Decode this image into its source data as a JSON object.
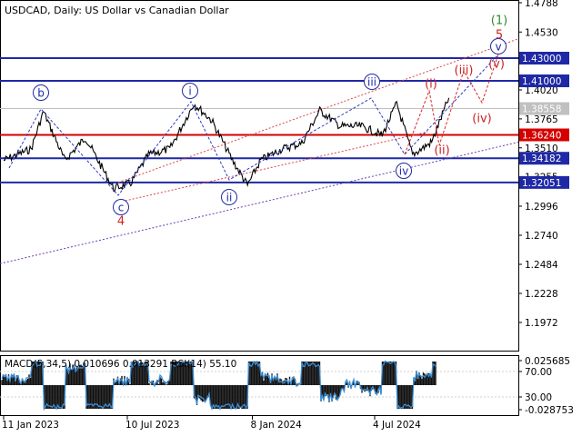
{
  "chart_data": {
    "type": "line",
    "title": "USDCAD, Daily:  US Dollar vs Canadian Dollar",
    "x_ticks": [
      "11 Jan 2023",
      "10 Jul 2023",
      "8 Jan 2024",
      "4 Jul 2024"
    ],
    "y_ticks": [
      1.4788,
      1.453,
      1.402,
      1.3765,
      1.351,
      1.3255,
      1.2996,
      1.274,
      1.2484,
      1.2228,
      1.1972
    ],
    "ylim": [
      1.183,
      1.485
    ],
    "price_series": {
      "name": "USDCAD close",
      "x": [
        "2023-01-11",
        "2023-02-20",
        "2023-03-10",
        "2023-04-10",
        "2023-05-10",
        "2023-06-20",
        "2023-07-15",
        "2023-08-10",
        "2023-09-10",
        "2023-10-15",
        "2023-11-10",
        "2023-12-10",
        "2024-01-01",
        "2024-01-20",
        "2024-02-20",
        "2024-03-20",
        "2024-04-15",
        "2024-05-15",
        "2024-06-15",
        "2024-07-15",
        "2024-08-05",
        "2024-08-28",
        "2024-09-25",
        "2024-10-20"
      ],
      "values": [
        1.34,
        1.35,
        1.383,
        1.34,
        1.36,
        1.315,
        1.32,
        1.345,
        1.35,
        1.39,
        1.375,
        1.34,
        1.318,
        1.34,
        1.35,
        1.355,
        1.384,
        1.37,
        1.37,
        1.362,
        1.39,
        1.345,
        1.356,
        1.395
      ]
    },
    "horizontal_levels": [
      {
        "value": "1.43000",
        "color": "#1f29a5"
      },
      {
        "value": "1.41000",
        "color": "#1f29a5"
      },
      {
        "value": "1.36240",
        "color": "#d40000"
      },
      {
        "value": "1.34182",
        "color": "#1f29a5"
      },
      {
        "value": "1.32051",
        "color": "#1f29a5"
      }
    ],
    "current_price": "1.38558",
    "wave_labels": [
      {
        "text": "b",
        "color": "#1f29a5",
        "circled": true
      },
      {
        "text": "c",
        "color": "#1f29a5",
        "circled": true
      },
      {
        "text": "4",
        "color": "#cc2222",
        "circled": false
      },
      {
        "text": "i",
        "color": "#1f29a5",
        "circled": true
      },
      {
        "text": "ii",
        "color": "#1f29a5",
        "circled": true
      },
      {
        "text": "iii",
        "color": "#1f29a5",
        "circled": true
      },
      {
        "text": "iv",
        "color": "#1f29a5",
        "circled": true
      },
      {
        "text": "v",
        "color": "#1f29a5",
        "circled": true
      },
      {
        "text": "5",
        "color": "#cc2222",
        "circled": false
      },
      {
        "text": "(1)",
        "color": "#2e8b2e",
        "circled": false
      },
      {
        "text": "(i)",
        "color": "#cc2222",
        "circled": false
      },
      {
        "text": "(ii)",
        "color": "#cc2222",
        "circled": false
      },
      {
        "text": "(iii)",
        "color": "#cc2222",
        "circled": false
      },
      {
        "text": "(iv)",
        "color": "#cc2222",
        "circled": false
      },
      {
        "text": "(v)",
        "color": "#cc2222",
        "circled": false
      }
    ],
    "indicator": {
      "label": "MACD(5,34,5) 0.010696 0.013291 RSI(14) 55.10",
      "ticks": [
        "0.025685",
        "70.00",
        "30.00",
        "-0.028753"
      ]
    }
  }
}
